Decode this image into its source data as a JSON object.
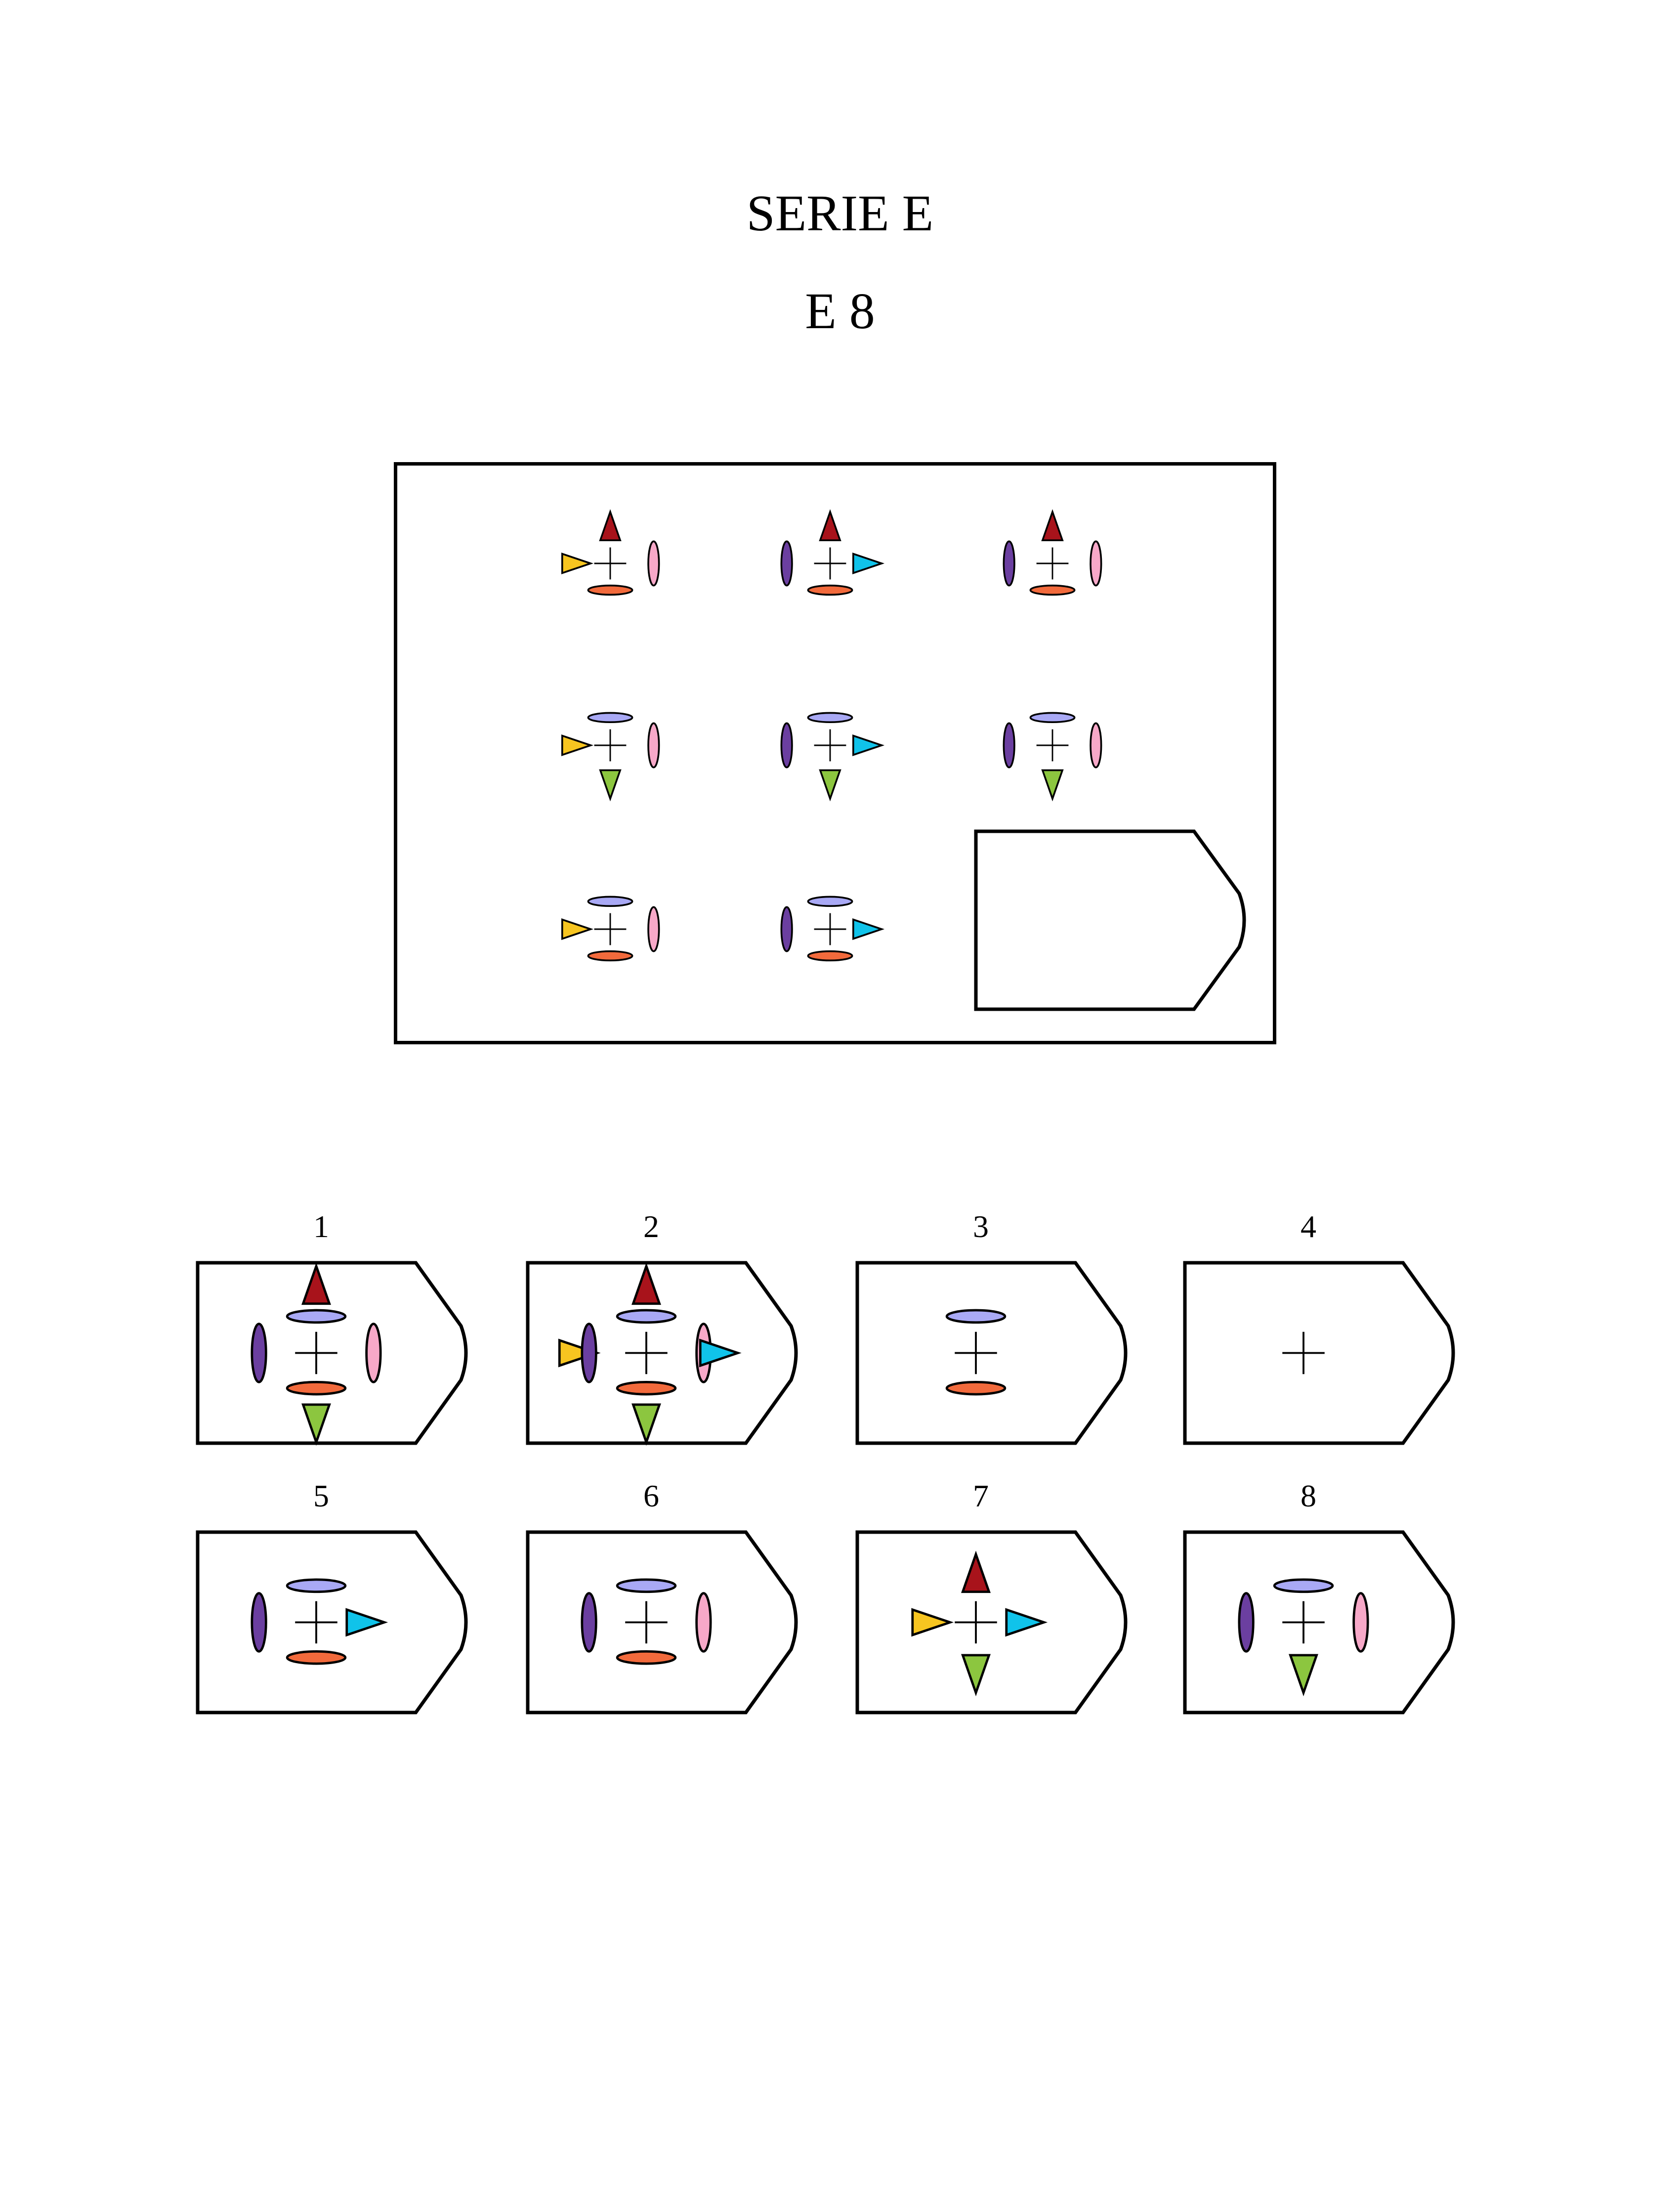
{
  "header": {
    "series": "SERIE E",
    "item": "E 8"
  },
  "colors": {
    "red_up_triangle": "#a8131b",
    "yellow_left_triangle": "#f7c520",
    "blue_right_triangle": "#10c3ea",
    "green_down_triangle": "#8cc63f",
    "purple_left_ellipse": "#6b3fa0",
    "pink_right_ellipse": "#f7a8c8",
    "lavender_top_ellipse": "#a9a9f5",
    "orange_bottom_ellipse": "#f26a3c"
  },
  "matrix": {
    "rows": [
      [
        [
          "left-triangle",
          "top-triangle",
          "bottom-ellipse",
          "right-ellipse"
        ],
        [
          "left-ellipse",
          "top-triangle",
          "bottom-ellipse",
          "right-triangle"
        ],
        [
          "left-ellipse",
          "top-triangle",
          "bottom-ellipse",
          "right-ellipse"
        ]
      ],
      [
        [
          "left-triangle",
          "top-ellipse",
          "bottom-triangle",
          "right-ellipse"
        ],
        [
          "left-ellipse",
          "top-ellipse",
          "bottom-triangle",
          "right-triangle"
        ],
        [
          "left-ellipse",
          "top-ellipse",
          "bottom-triangle",
          "right-ellipse"
        ]
      ],
      [
        [
          "left-triangle",
          "top-ellipse",
          "bottom-ellipse",
          "right-ellipse"
        ],
        [
          "left-ellipse",
          "top-ellipse",
          "bottom-ellipse",
          "right-triangle"
        ]
      ]
    ],
    "missing_cell": "blank"
  },
  "options": [
    {
      "number": "1",
      "parts": [
        "left-ellipse",
        "top-ellipse",
        "top-triangle",
        "bottom-ellipse",
        "bottom-triangle",
        "right-ellipse"
      ]
    },
    {
      "number": "2",
      "parts": [
        "left-triangle",
        "left-ellipse",
        "top-ellipse",
        "top-triangle",
        "bottom-ellipse",
        "bottom-triangle",
        "right-ellipse",
        "right-triangle"
      ]
    },
    {
      "number": "3",
      "parts": [
        "top-ellipse",
        "bottom-ellipse"
      ]
    },
    {
      "number": "4",
      "parts": []
    },
    {
      "number": "5",
      "parts": [
        "left-ellipse",
        "top-ellipse",
        "bottom-ellipse",
        "right-triangle"
      ]
    },
    {
      "number": "6",
      "parts": [
        "left-ellipse",
        "top-ellipse",
        "bottom-ellipse",
        "right-ellipse"
      ]
    },
    {
      "number": "7",
      "parts": [
        "left-triangle",
        "top-triangle",
        "bottom-triangle",
        "right-triangle"
      ]
    },
    {
      "number": "8",
      "parts": [
        "left-ellipse",
        "top-ellipse",
        "bottom-triangle",
        "right-ellipse"
      ]
    }
  ]
}
